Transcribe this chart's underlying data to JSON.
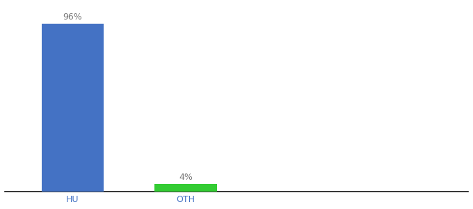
{
  "categories": [
    "HU",
    "OTH"
  ],
  "values": [
    96,
    4
  ],
  "bar_colors": [
    "#4472c4",
    "#33cc33"
  ],
  "value_labels": [
    "96%",
    "4%"
  ],
  "ylim": [
    0,
    107
  ],
  "bar_width": 0.55,
  "background_color": "#ffffff",
  "label_fontsize": 9,
  "tick_fontsize": 9,
  "tick_color": "#4472c4",
  "label_color": "#777777",
  "figsize": [
    6.8,
    3.0
  ],
  "dpi": 100,
  "x_positions": [
    0,
    1
  ],
  "xlim": [
    -0.6,
    3.5
  ]
}
